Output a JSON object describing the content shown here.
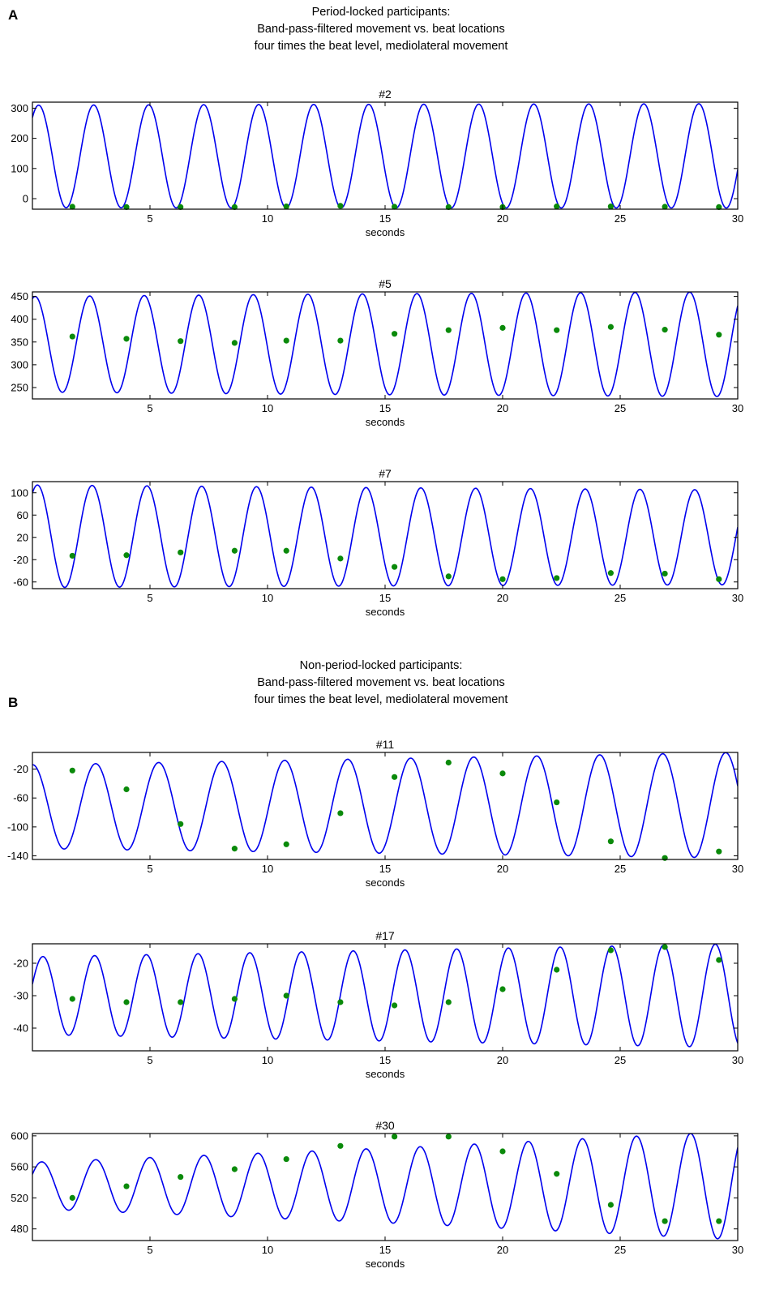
{
  "panels": [
    {
      "label": "A",
      "title_lines": [
        "Period-locked participants:",
        "Band-pass-filtered movement vs. beat locations",
        "four times the beat level, mediolateral movement"
      ]
    },
    {
      "label": "B",
      "title_lines": [
        "Non-period-locked participants:",
        "Band-pass-filtered movement vs. beat locations",
        "four times the beat level, mediolateral movement"
      ]
    }
  ],
  "colors": {
    "curve": "#0000ee",
    "beat_marker": "#0a8a0a",
    "axes": "#000000"
  },
  "chart_data": [
    {
      "type": "line",
      "title": "#2",
      "xlabel": "seconds",
      "ylabel": "",
      "xlim": [
        0,
        30
      ],
      "ylim": [
        -35,
        320
      ],
      "xticks": [
        5,
        10,
        15,
        20,
        25,
        30
      ],
      "yticks": [
        0,
        100,
        200,
        300
      ],
      "curve": {
        "period": 2.34,
        "phase": 0.86,
        "amps": [
          170,
          173
        ],
        "centers": [
          140,
          142
        ],
        "mid": 0.3
      },
      "beat_markers": {
        "x": [
          1.7,
          4.0,
          6.3,
          8.6,
          10.8,
          13.1,
          15.4,
          17.7,
          20.0,
          22.3,
          24.6,
          26.9,
          29.2
        ],
        "y": [
          -27,
          -28,
          -28,
          -28,
          -26,
          -24,
          -27,
          -28,
          -28,
          -26,
          -26,
          -27,
          -28
        ]
      }
    },
    {
      "type": "line",
      "title": "#5",
      "xlabel": "seconds",
      "ylabel": "",
      "xlim": [
        0,
        30
      ],
      "ylim": [
        225,
        460
      ],
      "xticks": [
        5,
        10,
        15,
        20,
        25,
        30
      ],
      "yticks": [
        250,
        300,
        350,
        400,
        450
      ],
      "curve": {
        "period": 2.32,
        "phase": 1.26,
        "amps": [
          105,
          115
        ],
        "centers": [
          345,
          345
        ],
        "mid": 0.4
      },
      "beat_markers": {
        "x": [
          1.7,
          4.0,
          6.3,
          8.6,
          10.8,
          13.1,
          15.4,
          17.7,
          20.0,
          22.3,
          24.6,
          26.9,
          29.2
        ],
        "y": [
          362,
          357,
          352,
          348,
          353,
          353,
          368,
          376,
          381,
          376,
          383,
          377,
          366
        ]
      }
    },
    {
      "type": "line",
      "title": "#7",
      "xlabel": "seconds",
      "ylabel": "",
      "xlim": [
        0,
        30
      ],
      "ylim": [
        -72,
        120
      ],
      "xticks": [
        5,
        10,
        15,
        20,
        25,
        30
      ],
      "yticks": [
        -60,
        -20,
        20,
        60,
        100
      ],
      "curve": {
        "period": 2.33,
        "phase": 1.0,
        "amps": [
          92,
          85
        ],
        "centers": [
          22,
          20
        ],
        "mid": 0.45
      },
      "beat_markers": {
        "x": [
          1.7,
          4.0,
          6.3,
          8.6,
          10.8,
          13.1,
          15.4,
          17.7,
          20.0,
          22.3,
          24.6,
          26.9,
          29.2
        ],
        "y": [
          -13,
          -12,
          -7,
          -4,
          -4,
          -18,
          -33,
          -50,
          -55,
          -53,
          -44,
          -45,
          -55
        ]
      }
    },
    {
      "type": "line",
      "title": "#11",
      "xlabel": "seconds",
      "ylabel": "",
      "xlim": [
        0,
        30
      ],
      "ylim": [
        -145,
        3
      ],
      "xticks": [
        5,
        10,
        15,
        20,
        25,
        30
      ],
      "yticks": [
        -140,
        -100,
        -60,
        -20
      ],
      "curve": {
        "period": 2.68,
        "phase": 1.55,
        "amps": [
          58,
          73
        ],
        "centers": [
          -72,
          -70
        ],
        "mid": 0.5
      },
      "beat_markers": {
        "x": [
          1.7,
          4.0,
          6.3,
          8.6,
          10.8,
          13.1,
          15.4,
          17.7,
          20.0,
          22.3,
          24.6,
          26.9,
          29.2
        ],
        "y": [
          -22,
          -48,
          -96,
          -130,
          -124,
          -81,
          -31,
          -11,
          -26,
          -66,
          -120,
          -143,
          -134
        ]
      }
    },
    {
      "type": "line",
      "title": "#17",
      "xlabel": "seconds",
      "ylabel": "",
      "xlim": [
        0,
        30
      ],
      "ylim": [
        -47,
        -14
      ],
      "xticks": [
        5,
        10,
        15,
        20,
        25,
        30
      ],
      "yticks": [
        -40,
        -30,
        -20
      ],
      "curve": {
        "period": 2.2,
        "phase": 0.3,
        "amps": [
          12,
          16
        ],
        "centers": [
          -30,
          -30
        ],
        "mid": 0.5
      },
      "beat_markers": {
        "x": [
          1.7,
          4.0,
          6.3,
          8.6,
          10.8,
          13.1,
          15.4,
          17.7,
          20.0,
          22.3,
          24.6,
          26.9,
          29.2
        ],
        "y": [
          -31,
          -32,
          -32,
          -31,
          -30,
          -32,
          -33,
          -32,
          -28,
          -22,
          -16,
          -15,
          -19
        ]
      }
    },
    {
      "type": "line",
      "title": "#30",
      "xlabel": "seconds",
      "ylabel": "",
      "xlim": [
        0,
        30
      ],
      "ylim": [
        465,
        603
      ],
      "xticks": [
        5,
        10,
        15,
        20,
        25,
        30
      ],
      "yticks": [
        480,
        520,
        560,
        600
      ],
      "curve": {
        "period": 2.3,
        "phase": 0.5,
        "amps": [
          30,
          70
        ],
        "centers": [
          536,
          536
        ],
        "mid": 0.55
      },
      "beat_markers": {
        "x": [
          1.7,
          4.0,
          6.3,
          8.6,
          10.8,
          13.1,
          15.4,
          17.7,
          20.0,
          22.3,
          24.6,
          26.9,
          29.2
        ],
        "y": [
          520,
          535,
          547,
          557,
          570,
          587,
          599,
          599,
          580,
          551,
          511,
          490,
          490
        ]
      }
    }
  ]
}
